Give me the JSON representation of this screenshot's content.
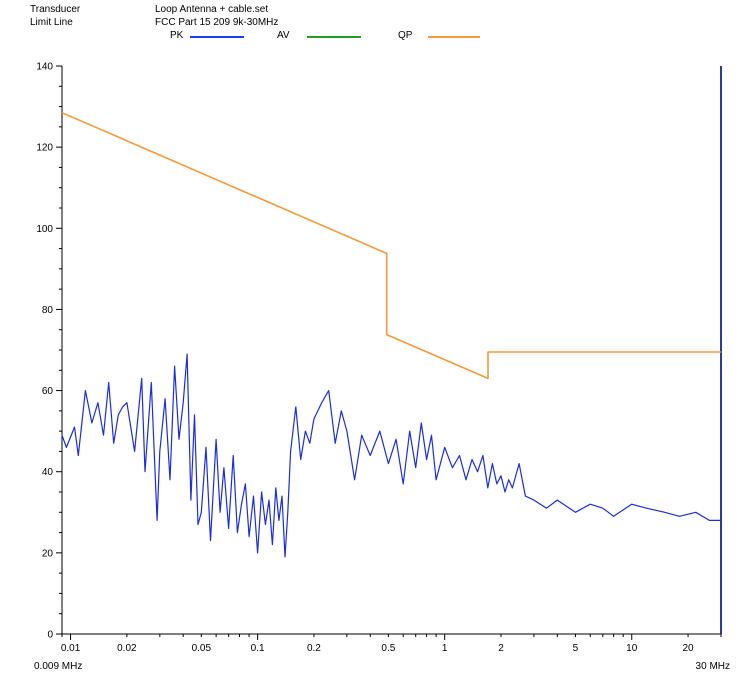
{
  "header": {
    "left_lines": [
      "Transducer",
      "Limit Line"
    ],
    "right_lines": [
      "Loop Antenna + cable.set",
      "FCC Part 15 209  9k-30MHz"
    ]
  },
  "legend": [
    {
      "name": "PK",
      "color": "#1a3cff"
    },
    {
      "name": "AV",
      "color": "#22a022"
    },
    {
      "name": "QP",
      "color": "#f39a3c"
    }
  ],
  "chart_data": {
    "type": "line",
    "title": "",
    "xlabel": "",
    "ylabel": "",
    "x_scale": "log",
    "xlim": [
      0.009,
      30
    ],
    "ylim": [
      0,
      140
    ],
    "y_major_ticks": [
      0,
      20,
      40,
      60,
      80,
      100,
      120,
      140
    ],
    "y_minor_step": 5,
    "x_tick_labels": [
      {
        "x": 0.01,
        "label": "0.01"
      },
      {
        "x": 0.02,
        "label": "0.02"
      },
      {
        "x": 0.05,
        "label": "0.05"
      },
      {
        "x": 0.1,
        "label": "0.1"
      },
      {
        "x": 0.2,
        "label": "0.2"
      },
      {
        "x": 0.5,
        "label": "0.5"
      },
      {
        "x": 1,
        "label": "1"
      },
      {
        "x": 2,
        "label": "2"
      },
      {
        "x": 5,
        "label": "5"
      },
      {
        "x": 10,
        "label": "10"
      },
      {
        "x": 20,
        "label": "20"
      }
    ],
    "x_start_label": "0.009 MHz",
    "x_end_label": "30 MHz",
    "series": [
      {
        "name": "QP",
        "color": "#f39a3c",
        "x": [
          0.009,
          0.49,
          0.49,
          1.705,
          1.705,
          30
        ],
        "y": [
          128.5,
          93.8,
          73.8,
          63.0,
          69.5,
          69.5
        ]
      },
      {
        "name": "PK",
        "color": "#1a2de0",
        "x": [
          0.009,
          0.0095,
          0.0105,
          0.011,
          0.012,
          0.013,
          0.014,
          0.015,
          0.016,
          0.017,
          0.018,
          0.019,
          0.02,
          0.022,
          0.024,
          0.025,
          0.027,
          0.029,
          0.03,
          0.032,
          0.034,
          0.036,
          0.038,
          0.04,
          0.042,
          0.044,
          0.046,
          0.048,
          0.05,
          0.053,
          0.056,
          0.06,
          0.063,
          0.066,
          0.07,
          0.074,
          0.078,
          0.082,
          0.086,
          0.09,
          0.095,
          0.1,
          0.105,
          0.11,
          0.115,
          0.12,
          0.125,
          0.13,
          0.135,
          0.14,
          0.145,
          0.15,
          0.16,
          0.17,
          0.18,
          0.19,
          0.2,
          0.22,
          0.24,
          0.26,
          0.28,
          0.3,
          0.33,
          0.36,
          0.4,
          0.45,
          0.5,
          0.55,
          0.6,
          0.65,
          0.7,
          0.75,
          0.8,
          0.85,
          0.9,
          1.0,
          1.1,
          1.2,
          1.3,
          1.4,
          1.5,
          1.6,
          1.7,
          1.8,
          1.9,
          2.0,
          2.1,
          2.2,
          2.3,
          2.5,
          2.7,
          3.0,
          3.5,
          4.0,
          5.0,
          6.0,
          7.0,
          8.0,
          10.0,
          12.0,
          15.0,
          18.0,
          22.0,
          26.0,
          30.0
        ],
        "y": [
          49,
          46,
          51,
          44,
          60,
          52,
          57,
          49,
          62,
          47,
          54,
          56,
          57,
          45,
          63,
          40,
          62,
          28,
          45,
          58,
          38,
          66,
          48,
          57,
          69,
          33,
          54,
          27,
          30,
          46,
          23,
          48,
          30,
          41,
          26,
          44,
          25,
          32,
          37,
          24,
          34,
          20,
          35,
          27,
          33,
          22,
          36,
          28,
          34,
          19,
          30,
          45,
          56,
          43,
          50,
          47,
          53,
          57,
          60,
          47,
          55,
          50,
          38,
          49,
          44,
          50,
          42,
          48,
          37,
          50,
          41,
          52,
          43,
          49,
          38,
          46,
          41,
          44,
          38,
          43,
          40,
          44,
          36,
          42,
          37,
          39,
          35,
          38,
          36,
          42,
          34,
          33,
          31,
          33,
          30,
          32,
          31,
          29,
          32,
          31,
          30,
          29,
          30,
          28,
          28
        ]
      }
    ]
  }
}
